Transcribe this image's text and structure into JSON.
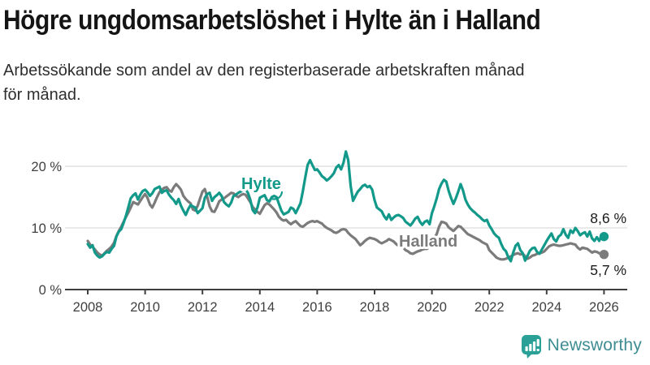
{
  "title": "Högre ungdomsarbetslöshet i Hylte än i Halland",
  "subtitle_lines": [
    "Arbetssökande som andel av den registerbaserade arbetskraften månad",
    "för månad."
  ],
  "branding": {
    "logo_text": "Newsworthy",
    "icon_name": "newsworthy-bar-chart-bubble-icon",
    "icon_color": "#2aa197",
    "wordmark_color": "#3e8d92"
  },
  "colors": {
    "hylte": "#12998a",
    "halland": "#7b7b7b",
    "grid": "#dcdcdc",
    "axis": "#3f3f3f",
    "axis_text": "#404040",
    "value_label": "#1a1a1a"
  },
  "chart_data": {
    "type": "line",
    "title": "Högre ungdomsarbetslöshet i Hylte än i Halland",
    "subtitle": "Arbetssökande som andel av den registerbaserade arbetskraften månad för månad.",
    "x_unit": "year (monthly data)",
    "x_start": 2008.0,
    "x_step": 0.0833,
    "x_ticks": [
      2008,
      2010,
      2012,
      2014,
      2016,
      2018,
      2020,
      2022,
      2024,
      2026
    ],
    "ylim": [
      0,
      24
    ],
    "y_ticks": [
      {
        "value": 0,
        "label": "0 %"
      },
      {
        "value": 10,
        "label": "10 %"
      },
      {
        "value": 20,
        "label": "20 %"
      }
    ],
    "grid": "horizontal",
    "legend_position": "inline-labels",
    "series": [
      {
        "name": "Halland",
        "end_label": "5,7 %",
        "values": [
          7.9,
          7.3,
          6.9,
          6.5,
          6.0,
          5.7,
          5.5,
          5.9,
          6.3,
          6.6,
          7.0,
          7.6,
          8.7,
          9.5,
          10.2,
          11.0,
          11.8,
          12.5,
          13.3,
          14.2,
          14.0,
          13.8,
          14.4,
          15.0,
          15.5,
          14.9,
          13.8,
          13.3,
          14.1,
          15.0,
          15.8,
          16.2,
          16.5,
          16.6,
          16.1,
          15.9,
          16.6,
          17.1,
          16.7,
          16.2,
          15.2,
          14.7,
          14.3,
          14.0,
          13.0,
          12.8,
          13.6,
          14.8,
          15.9,
          16.3,
          15.0,
          13.5,
          12.7,
          12.6,
          13.4,
          14.3,
          14.6,
          14.8,
          15.1,
          15.4,
          15.7,
          15.6,
          15.2,
          15.0,
          15.3,
          15.5,
          15.4,
          14.8,
          14.2,
          13.4,
          13.0,
          12.6,
          12.3,
          13.0,
          13.7,
          14.0,
          13.8,
          13.4,
          13.0,
          12.5,
          11.8,
          11.4,
          11.2,
          11.3,
          10.9,
          10.6,
          10.9,
          11.1,
          10.7,
          10.3,
          10.2,
          10.5,
          10.8,
          11.0,
          11.1,
          11.0,
          11.1,
          10.9,
          10.7,
          10.3,
          10.0,
          9.8,
          9.6,
          9.3,
          9.2,
          9.4,
          9.7,
          9.8,
          9.7,
          9.2,
          8.8,
          8.5,
          8.2,
          7.7,
          7.2,
          7.5,
          7.9,
          8.2,
          8.4,
          8.3,
          8.2,
          8.0,
          7.7,
          7.5,
          7.7,
          7.9,
          8.2,
          8.0,
          7.8,
          7.4,
          7.1,
          6.9,
          6.8,
          6.4,
          6.2,
          5.9,
          5.8,
          6.0,
          6.2,
          6.3,
          6.5,
          6.6,
          6.6,
          7.0,
          7.8,
          8.4,
          9.0,
          10.2,
          11.0,
          10.9,
          10.7,
          10.1,
          9.8,
          9.5,
          9.9,
          10.3,
          10.2,
          9.8,
          9.4,
          9.0,
          8.8,
          8.6,
          8.4,
          8.2,
          8.0,
          7.7,
          7.5,
          7.3,
          6.4,
          6.0,
          5.6,
          5.2,
          5.0,
          4.9,
          4.9,
          5.0,
          5.2,
          5.4,
          5.6,
          5.8,
          5.9,
          5.7,
          5.8,
          5.4,
          5.0,
          5.2,
          5.5,
          5.6,
          5.8,
          5.9,
          6.0,
          6.2,
          6.6,
          7.0,
          7.2,
          7.3,
          7.2,
          7.1,
          7.1,
          7.2,
          7.3,
          7.4,
          7.5,
          7.4,
          7.3,
          6.8,
          6.5,
          6.8,
          6.7,
          6.6,
          6.3,
          6.0,
          6.2,
          6.1,
          5.9,
          5.8,
          5.7
        ]
      },
      {
        "name": "Hylte",
        "end_label": "8,6 %",
        "values": [
          7.4,
          6.8,
          7.2,
          6.0,
          5.5,
          5.2,
          5.4,
          5.8,
          6.1,
          6.0,
          6.6,
          7.1,
          8.6,
          9.4,
          9.8,
          10.8,
          12.0,
          13.4,
          14.8,
          15.3,
          15.6,
          14.6,
          15.4,
          16.0,
          16.2,
          15.8,
          15.2,
          15.6,
          16.3,
          16.5,
          16.7,
          15.7,
          16.0,
          16.1,
          15.4,
          14.9,
          14.5,
          13.9,
          14.7,
          13.6,
          12.8,
          12.1,
          13.0,
          13.7,
          13.5,
          13.3,
          12.4,
          12.8,
          13.2,
          14.9,
          15.5,
          15.7,
          14.4,
          15.0,
          15.3,
          15.7,
          15.2,
          14.2,
          13.8,
          13.5,
          14.1,
          15.2,
          15.4,
          15.7,
          15.9,
          16.2,
          16.3,
          15.7,
          14.6,
          12.9,
          12.4,
          13.3,
          14.9,
          15.1,
          15.3,
          14.5,
          14.3,
          15.0,
          15.2,
          15.0,
          13.9,
          12.8,
          12.2,
          12.4,
          12.6,
          13.3,
          13.1,
          12.4,
          13.2,
          14.0,
          16.0,
          18.2,
          20.2,
          21.0,
          20.2,
          19.4,
          19.5,
          19.0,
          18.4,
          18.1,
          17.7,
          18.0,
          18.4,
          18.9,
          19.8,
          20.2,
          19.5,
          20.6,
          22.4,
          21.0,
          16.8,
          14.4,
          15.2,
          15.9,
          16.3,
          16.8,
          17.0,
          16.6,
          16.8,
          16.2,
          14.5,
          13.3,
          13.0,
          12.7,
          11.9,
          11.4,
          12.2,
          11.3,
          11.7,
          12.0,
          12.1,
          11.9,
          11.6,
          11.0,
          10.7,
          10.4,
          10.9,
          11.5,
          11.8,
          11.0,
          10.5,
          11.0,
          11.2,
          10.6,
          12.4,
          13.5,
          14.8,
          16.3,
          17.2,
          17.8,
          17.5,
          16.0,
          14.9,
          13.9,
          14.8,
          15.9,
          17.1,
          16.1,
          14.6,
          13.8,
          13.2,
          12.8,
          12.5,
          12.1,
          11.8,
          11.4,
          11.1,
          11.3,
          10.4,
          9.8,
          9.1,
          8.7,
          8.4,
          7.4,
          6.6,
          6.2,
          5.2,
          4.6,
          6.0,
          7.1,
          7.5,
          6.4,
          5.9,
          4.7,
          5.5,
          6.3,
          6.7,
          6.8,
          6.1,
          5.8,
          6.5,
          7.2,
          7.9,
          8.5,
          9.1,
          8.2,
          7.8,
          8.6,
          8.9,
          9.8,
          8.9,
          8.4,
          9.6,
          9.2,
          10.0,
          9.5,
          8.8,
          9.1,
          9.3,
          8.6,
          9.4,
          8.3,
          7.9,
          8.5,
          7.9,
          8.8,
          8.6
        ]
      }
    ]
  }
}
